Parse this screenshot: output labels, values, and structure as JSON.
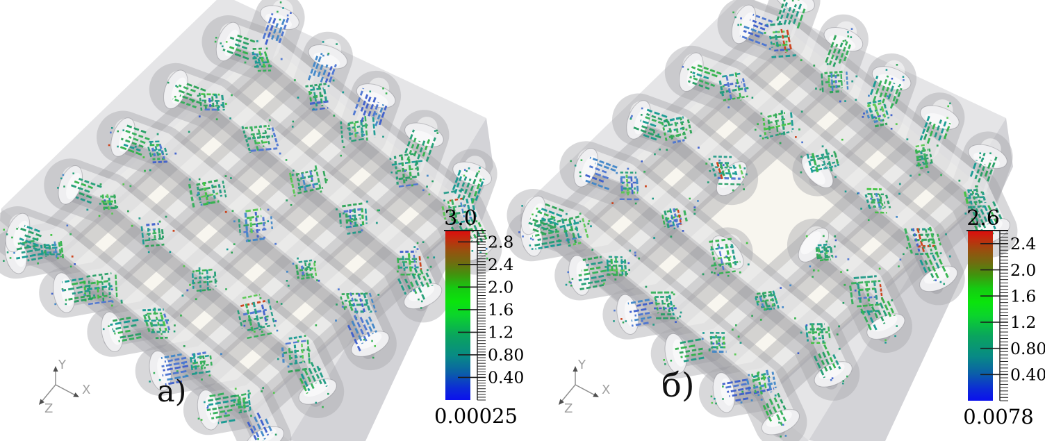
{
  "figure": {
    "panels": [
      {
        "label": "а)",
        "axis_triad": {
          "x_label": "X",
          "y_label": "Y",
          "z_label": "Z"
        },
        "colorbar": {
          "title": "3.0",
          "min_label": "0.00025",
          "tick_labels": [
            "2.8",
            "2.4",
            "2.0",
            "1.6",
            "1.2",
            "0.80",
            "0.40"
          ],
          "tick_values": [
            2.8,
            2.4,
            2.0,
            1.6,
            1.2,
            0.8,
            0.4
          ],
          "range_min": 0.00025,
          "range_max": 3.0
        },
        "has_center_hole": false
      },
      {
        "label": "б)",
        "axis_triad": {
          "x_label": "X",
          "y_label": "Y",
          "z_label": "Z"
        },
        "colorbar": {
          "title": "2.6",
          "min_label": "0.0078",
          "tick_labels": [
            "2.4",
            "2.0",
            "1.6",
            "1.2",
            "0.80",
            "0.40"
          ],
          "tick_values": [
            2.4,
            2.0,
            1.6,
            1.2,
            0.8,
            0.4
          ],
          "range_min": 0.0078,
          "range_max": 2.6
        },
        "has_center_hole": true
      }
    ],
    "colors": {
      "background": "#ffffff",
      "slab_top": "#e5e5e7",
      "slab_side": "#d3d3d7",
      "slab_sliver": "#dcdcdf",
      "cavity": "#f8f6ef",
      "tube": "rgba(168,168,172,0.45)",
      "tube_highlight": "rgba(255,255,255,0.52)",
      "tube_shade": "rgba(110,110,118,0.20)",
      "cap_fill": "#efeff1",
      "cap_stroke": "rgba(120,120,128,0.40)",
      "stream_greens": [
        "#239e63",
        "#1d9a86",
        "#2aa455",
        "#31b058",
        "#1f9e74",
        "#2fb34a",
        "#139a91"
      ],
      "stream_brights": [
        "#3ec43e",
        "#55c94f"
      ],
      "stream_blues": [
        "#3c5ecc",
        "#4a74d2",
        "#3f86c9"
      ],
      "stream_red": "#cc3b12",
      "colorbar_stops": [
        [
          0.0,
          "#dd0d0d"
        ],
        [
          0.05,
          "#c32b0e"
        ],
        [
          0.12,
          "#96510f"
        ],
        [
          0.19,
          "#6f6d10"
        ],
        [
          0.26,
          "#41930e"
        ],
        [
          0.34,
          "#15cb11"
        ],
        [
          0.42,
          "#0ae40c"
        ],
        [
          0.5,
          "#0bd42c"
        ],
        [
          0.62,
          "#0aa45e"
        ],
        [
          0.74,
          "#088a85"
        ],
        [
          0.84,
          "#0b5fa8"
        ],
        [
          0.93,
          "#0c2cd6"
        ],
        [
          1.0,
          "#0b10ee"
        ]
      ],
      "axis_line": "#8f8f8f",
      "axis_label": "#a0a0a0",
      "axis_head": "#4f4f4f",
      "tick_color": "#1c1c1c",
      "label_color": "#000000"
    }
  },
  "chart_data": [
    {
      "type": "scatter",
      "title": "а)",
      "description": "3D view: streamline sample points inside a plain-weave yarn structure, colored by scalar magnitude",
      "colorbar": {
        "max": 3.0,
        "min": 0.00025,
        "ticks": [
          2.8,
          2.4,
          2.0,
          1.6,
          1.2,
          0.8,
          0.4
        ]
      },
      "axes": [
        "X",
        "Y",
        "Z"
      ]
    },
    {
      "type": "scatter",
      "title": "б)",
      "description": "3D view: same weave with central yarn opening, points colored by scalar magnitude",
      "colorbar": {
        "max": 2.6,
        "min": 0.0078,
        "ticks": [
          2.4,
          2.0,
          1.6,
          1.2,
          0.8,
          0.4
        ]
      },
      "axes": [
        "X",
        "Y",
        "Z"
      ]
    }
  ]
}
